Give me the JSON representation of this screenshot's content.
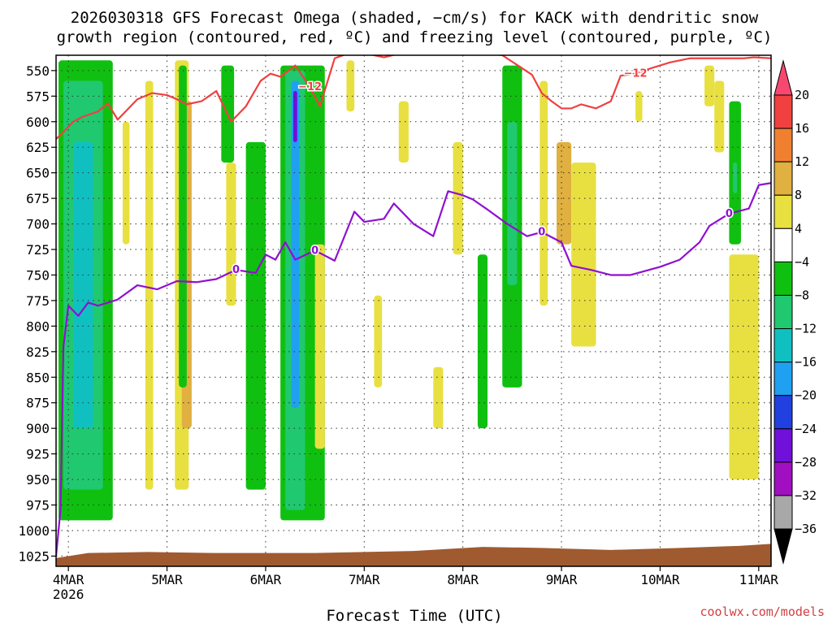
{
  "title": {
    "line1": "2026030318 GFS Forecast Omega (shaded, −cm/s) for KACK with dendritic snow",
    "line2": "growth region (contoured, red, ºC) and freezing level (contoured, purple, ºC)"
  },
  "credit": "coolwx.com/models",
  "chart_data": {
    "type": "heatmap",
    "title": "2026030318 GFS Forecast Omega (shaded, −cm/s) for KACK with dendritic snow growth region (contoured, red, ºC) and freezing level (contoured, purple, ºC)",
    "xlabel": "Forecast Time (UTC)",
    "ylabel": "",
    "x_ticks": [
      {
        "label": "4MAR",
        "sublabel": "2026",
        "day": 4
      },
      {
        "label": "5MAR",
        "day": 5
      },
      {
        "label": "6MAR",
        "day": 6
      },
      {
        "label": "7MAR",
        "day": 7
      },
      {
        "label": "8MAR",
        "day": 8
      },
      {
        "label": "9MAR",
        "day": 9
      },
      {
        "label": "10MAR",
        "day": 10
      },
      {
        "label": "11MAR",
        "day": 11
      }
    ],
    "xlim": [
      3.875,
      11.125
    ],
    "y_ticks": [
      550,
      575,
      600,
      625,
      650,
      675,
      700,
      725,
      750,
      775,
      800,
      825,
      850,
      875,
      900,
      925,
      950,
      975,
      1000,
      1025
    ],
    "ylim": [
      1035,
      535
    ],
    "y_scale": "reversed-pressure",
    "grid": true,
    "colorbar": {
      "levels": [
        "20",
        "16",
        "12",
        "8",
        "4",
        "−4",
        "−8",
        "−12",
        "−16",
        "−20",
        "−24",
        "−28",
        "−32",
        "−36"
      ],
      "colors": [
        "#f84870",
        "#f04040",
        "#f08030",
        "#e0b040",
        "#e8e040",
        "#ffffff",
        "#10c010",
        "#20c870",
        "#10c0c0",
        "#20a0f0",
        "#2040e0",
        "#7010d8",
        "#a010c0",
        "#a8a8a8",
        "#000000"
      ]
    },
    "omega_regions": [
      {
        "band": "−4",
        "x_range": [
          3.9,
          4.45
        ],
        "p_range": [
          540,
          990
        ]
      },
      {
        "band": "−8",
        "x_range": [
          3.95,
          4.35
        ],
        "p_range": [
          560,
          960
        ]
      },
      {
        "band": "−12",
        "x_range": [
          4.05,
          4.25
        ],
        "p_range": [
          620,
          900
        ]
      },
      {
        "band": "4",
        "x_range": [
          4.55,
          4.62
        ],
        "p_range": [
          600,
          720
        ]
      },
      {
        "band": "4",
        "x_range": [
          4.78,
          4.86
        ],
        "p_range": [
          560,
          960
        ]
      },
      {
        "band": "4",
        "x_range": [
          5.08,
          5.22
        ],
        "p_range": [
          540,
          960
        ]
      },
      {
        "band": "8",
        "x_range": [
          5.15,
          5.25
        ],
        "p_range": [
          580,
          900
        ]
      },
      {
        "band": "−4",
        "x_range": [
          5.12,
          5.2
        ],
        "p_range": [
          545,
          860
        ]
      },
      {
        "band": "4",
        "x_range": [
          5.6,
          5.7
        ],
        "p_range": [
          640,
          780
        ]
      },
      {
        "band": "−4",
        "x_range": [
          5.55,
          5.68
        ],
        "p_range": [
          545,
          640
        ]
      },
      {
        "band": "−4",
        "x_range": [
          5.8,
          6.0
        ],
        "p_range": [
          620,
          960
        ]
      },
      {
        "band": "−4",
        "x_range": [
          6.15,
          6.6
        ],
        "p_range": [
          545,
          990
        ]
      },
      {
        "band": "−8",
        "x_range": [
          6.2,
          6.4
        ],
        "p_range": [
          550,
          980
        ]
      },
      {
        "band": "−16",
        "x_range": [
          6.26,
          6.34
        ],
        "p_range": [
          560,
          880
        ]
      },
      {
        "band": "−24",
        "x_range": [
          6.28,
          6.32
        ],
        "p_range": [
          570,
          620
        ]
      },
      {
        "band": "4",
        "x_range": [
          6.5,
          6.6
        ],
        "p_range": [
          720,
          920
        ]
      },
      {
        "band": "4",
        "x_range": [
          6.82,
          6.9
        ],
        "p_range": [
          540,
          590
        ]
      },
      {
        "band": "4",
        "x_range": [
          7.1,
          7.18
        ],
        "p_range": [
          770,
          860
        ]
      },
      {
        "band": "4",
        "x_range": [
          7.35,
          7.45
        ],
        "p_range": [
          580,
          640
        ]
      },
      {
        "band": "4",
        "x_range": [
          7.7,
          7.8
        ],
        "p_range": [
          840,
          900
        ]
      },
      {
        "band": "4",
        "x_range": [
          7.9,
          8.0
        ],
        "p_range": [
          620,
          730
        ]
      },
      {
        "band": "−4",
        "x_range": [
          8.15,
          8.25
        ],
        "p_range": [
          730,
          900
        ]
      },
      {
        "band": "−4",
        "x_range": [
          8.4,
          8.6
        ],
        "p_range": [
          545,
          860
        ]
      },
      {
        "band": "−8",
        "x_range": [
          8.45,
          8.55
        ],
        "p_range": [
          600,
          760
        ]
      },
      {
        "band": "4",
        "x_range": [
          8.78,
          8.86
        ],
        "p_range": [
          560,
          780
        ]
      },
      {
        "band": "8",
        "x_range": [
          8.95,
          9.1
        ],
        "p_range": [
          620,
          720
        ]
      },
      {
        "band": "4",
        "x_range": [
          9.1,
          9.35
        ],
        "p_range": [
          640,
          820
        ]
      },
      {
        "band": "4",
        "x_range": [
          9.75,
          9.82
        ],
        "p_range": [
          570,
          600
        ]
      },
      {
        "band": "4",
        "x_range": [
          10.45,
          10.55
        ],
        "p_range": [
          545,
          585
        ]
      },
      {
        "band": "4",
        "x_range": [
          10.55,
          10.65
        ],
        "p_range": [
          560,
          630
        ]
      },
      {
        "band": "4",
        "x_range": [
          10.7,
          11.0
        ],
        "p_range": [
          730,
          950
        ]
      },
      {
        "band": "−4",
        "x_range": [
          10.7,
          10.82
        ],
        "p_range": [
          580,
          720
        ]
      },
      {
        "band": "−8",
        "x_range": [
          10.74,
          10.78
        ],
        "p_range": [
          640,
          670
        ]
      }
    ],
    "series": [
      {
        "name": "",
        "color": "#f04040",
        "contour_value": "−12",
        "x": [
          3.875,
          3.95,
          4.05,
          4.15,
          4.3,
          4.4,
          4.5,
          4.7,
          4.85,
          5.0,
          5.1,
          5.2,
          5.35,
          5.5,
          5.65,
          5.8,
          5.95,
          6.05,
          6.15,
          6.3,
          6.45,
          6.55,
          6.7,
          6.9,
          7.2,
          7.5,
          7.8,
          8.1,
          8.4,
          8.7,
          8.8,
          8.9,
          9.0,
          9.1,
          9.2,
          9.35,
          9.5,
          9.6,
          9.75,
          9.9,
          10.1,
          10.3,
          10.5,
          10.7,
          10.85,
          10.95,
          11.125
        ],
        "y": [
          617,
          610,
          600,
          595,
          590,
          582,
          598,
          578,
          572,
          574,
          578,
          583,
          580,
          570,
          600,
          585,
          560,
          553,
          556,
          545,
          566,
          585,
          538,
          531,
          537,
          530,
          532,
          531,
          535,
          554,
          572,
          580,
          587,
          587,
          583,
          587,
          580,
          555,
          553,
          548,
          542,
          538,
          538,
          538,
          538,
          537,
          538
        ]
      },
      {
        "name": "",
        "color": "#9010d0",
        "contour_value": "0",
        "x": [
          3.875,
          3.92,
          3.95,
          4.0,
          4.1,
          4.2,
          4.3,
          4.5,
          4.7,
          4.9,
          5.1,
          5.3,
          5.5,
          5.7,
          5.9,
          6.0,
          6.1,
          6.2,
          6.3,
          6.5,
          6.7,
          6.9,
          7.0,
          7.2,
          7.3,
          7.5,
          7.7,
          7.85,
          8.0,
          8.1,
          8.25,
          8.45,
          8.65,
          8.8,
          9.0,
          9.1,
          9.3,
          9.5,
          9.7,
          10.0,
          10.2,
          10.4,
          10.5,
          10.7,
          10.9,
          11.0,
          11.125
        ],
        "y": [
          1025,
          980,
          820,
          780,
          790,
          777,
          780,
          774,
          760,
          764,
          756,
          757,
          754,
          745,
          748,
          730,
          735,
          718,
          735,
          726,
          736,
          688,
          698,
          695,
          680,
          700,
          712,
          668,
          672,
          676,
          686,
          700,
          712,
          708,
          718,
          741,
          745,
          750,
          750,
          742,
          735,
          718,
          702,
          690,
          685,
          662,
          660
        ]
      }
    ],
    "contour_labels": [
      {
        "text": "−12",
        "series": 0
      },
      {
        "text": "0",
        "series": 1
      }
    ],
    "terrain": {
      "color": "#a05a30",
      "surface_pressure_x": [
        3.875,
        4.2,
        4.8,
        5.5,
        6.5,
        7.5,
        8.2,
        8.8,
        9.5,
        10.2,
        10.8,
        11.125
      ],
      "surface_pressure_y": [
        1027,
        1022,
        1021,
        1022,
        1022,
        1020,
        1016,
        1017,
        1019,
        1017,
        1015,
        1013
      ]
    }
  }
}
